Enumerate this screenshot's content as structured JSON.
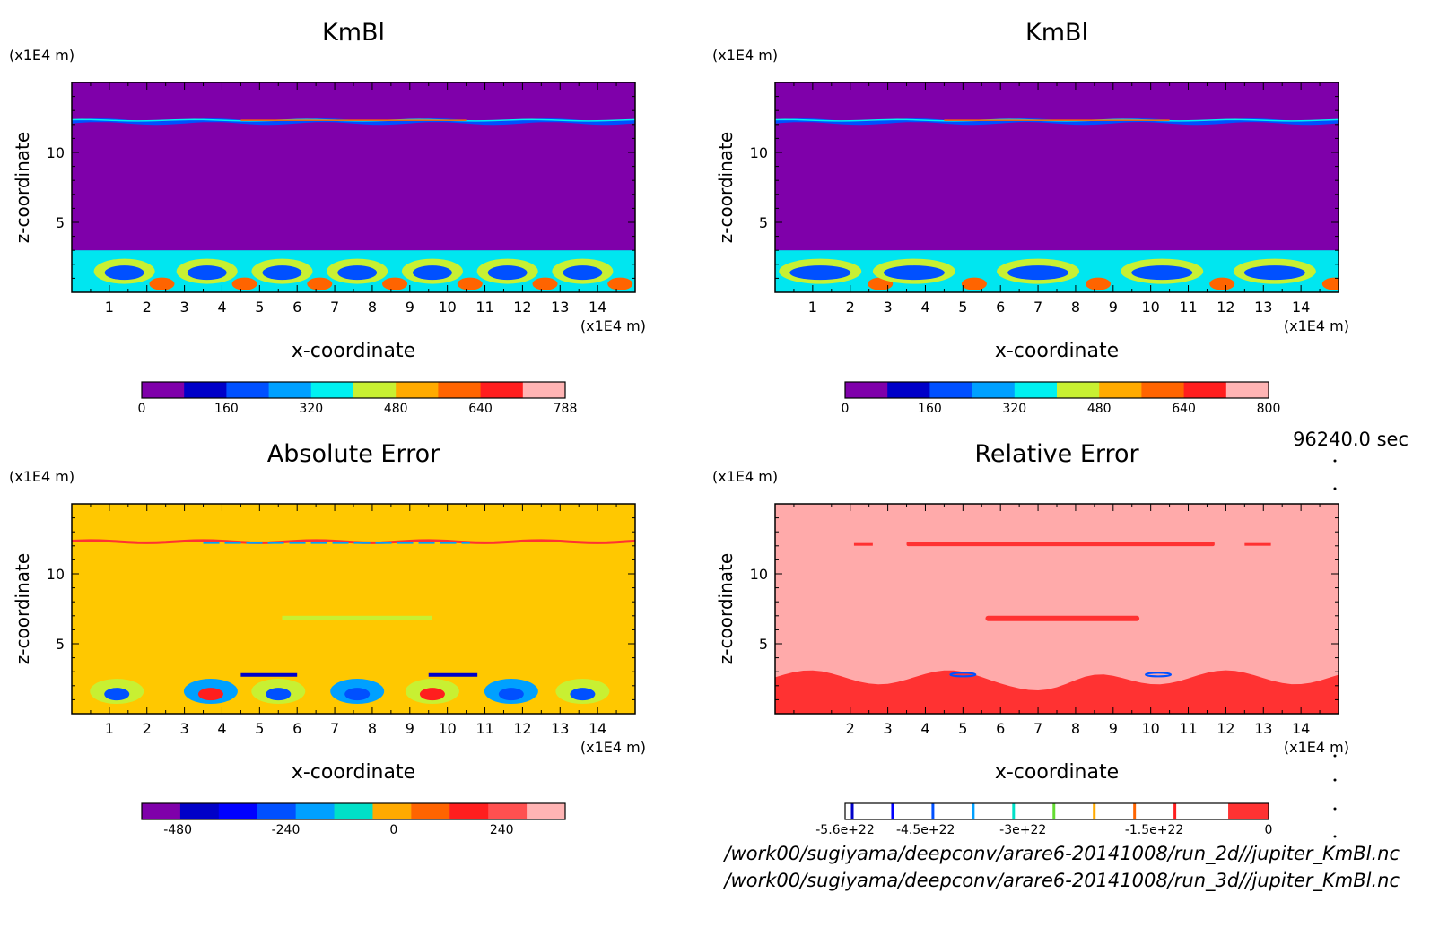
{
  "time_label": "96240.0 sec",
  "file_paths": [
    "/work00/sugiyama/deepconv/arare6-20141008/run_2d//jupiter_KmBl.nc",
    "/work00/sugiyama/deepconv/arare6-20141008/run_3d//jupiter_KmBl.nc"
  ],
  "chart_data": [
    {
      "type": "heatmap",
      "title": "KmBl",
      "xlabel": "x-coordinate",
      "ylabel": "z-coordinate",
      "x_unit": "(x1E4 m)",
      "y_unit": "(x1E4 m)",
      "xlim": [
        0,
        15
      ],
      "ylim": [
        0,
        15
      ],
      "xticks": [
        1,
        2,
        3,
        4,
        5,
        6,
        7,
        8,
        9,
        10,
        11,
        12,
        13,
        14
      ],
      "yticks": [
        5,
        10
      ],
      "colorbar": {
        "colors": [
          "#7f00aa",
          "#0000c8",
          "#0050ff",
          "#00a0ff",
          "#00f0f0",
          "#c8f032",
          "#ffaa00",
          "#ff6400",
          "#ff1e1e",
          "#ffb4b4"
        ],
        "tick_labels": [
          "0",
          "160",
          "320",
          "480",
          "640",
          "788"
        ],
        "range": [
          0,
          788
        ]
      },
      "background_color": "#7f00aa",
      "features": [
        "near-zero interior",
        "thin layer near z=12.2",
        "turbulent boundary layer below z=3"
      ]
    },
    {
      "type": "heatmap",
      "title": "KmBl",
      "xlabel": "x-coordinate",
      "ylabel": "z-coordinate",
      "x_unit": "(x1E4 m)",
      "y_unit": "(x1E4 m)",
      "xlim": [
        0,
        15
      ],
      "ylim": [
        0,
        15
      ],
      "xticks": [
        1,
        2,
        3,
        4,
        5,
        6,
        7,
        8,
        9,
        10,
        11,
        12,
        13,
        14
      ],
      "yticks": [
        5,
        10
      ],
      "colorbar": {
        "colors": [
          "#7f00aa",
          "#0000c8",
          "#0050ff",
          "#00a0ff",
          "#00f0f0",
          "#c8f032",
          "#ffaa00",
          "#ff6400",
          "#ff1e1e",
          "#ffb4b4"
        ],
        "tick_labels": [
          "0",
          "160",
          "320",
          "480",
          "640",
          "800"
        ],
        "range": [
          0,
          800
        ]
      },
      "background_color": "#7f00aa",
      "features": [
        "near-zero interior",
        "thin layer near z=12.2",
        "regular convective cells below z=3"
      ]
    },
    {
      "type": "heatmap",
      "title": "Absolute Error",
      "xlabel": "x-coordinate",
      "ylabel": "z-coordinate",
      "x_unit": "(x1E4 m)",
      "y_unit": "(x1E4 m)",
      "xlim": [
        0,
        15
      ],
      "ylim": [
        0,
        15
      ],
      "xticks": [
        1,
        2,
        3,
        4,
        5,
        6,
        7,
        8,
        9,
        10,
        11,
        12,
        13,
        14
      ],
      "yticks": [
        5,
        10
      ],
      "colorbar": {
        "colors": [
          "#7f00aa",
          "#0000c8",
          "#0000ff",
          "#0050ff",
          "#00a0ff",
          "#00e0c8",
          "#ffaa00",
          "#ff6400",
          "#ff1e1e",
          "#ff5050",
          "#ffb4b4"
        ],
        "tick_labels": [
          "-480",
          "-240",
          "0",
          "240"
        ],
        "range": [
          -580,
          320
        ]
      },
      "background_color": "#ffc800",
      "features": [
        "near-zero interior",
        "thin layer near z=12.2",
        "band near z=6.8",
        "errors below z=3"
      ]
    },
    {
      "type": "heatmap",
      "title": "Relative Error",
      "xlabel": "x-coordinate",
      "ylabel": "z-coordinate",
      "x_unit": "(x1E4 m)",
      "y_unit": "(x1E4 m)",
      "xlim": [
        0,
        15
      ],
      "ylim": [
        0,
        15
      ],
      "xticks": [
        2,
        3,
        4,
        5,
        6,
        7,
        8,
        9,
        10,
        11,
        12,
        13,
        14
      ],
      "yticks": [
        5,
        10
      ],
      "colorbar": {
        "colors": [
          "#ffffff",
          "#ff3232"
        ],
        "line_colors": [
          "#0000c8",
          "#0000ff",
          "#0050ff",
          "#00a0ff",
          "#00e0c8",
          "#64dc32",
          "#ffaa00",
          "#ff6400",
          "#ff1e1e"
        ],
        "tick_labels": [
          "-5.6e+22",
          "-4.5e+22",
          "-3e+22",
          "-1.5e+22",
          "0"
        ],
        "range": [
          -5.6e+22,
          0
        ]
      },
      "background_color": "#ffaaaa",
      "features": [
        "mostly near zero",
        "patches near z=12.2 and z=6.8",
        "red region below z=3"
      ]
    }
  ]
}
